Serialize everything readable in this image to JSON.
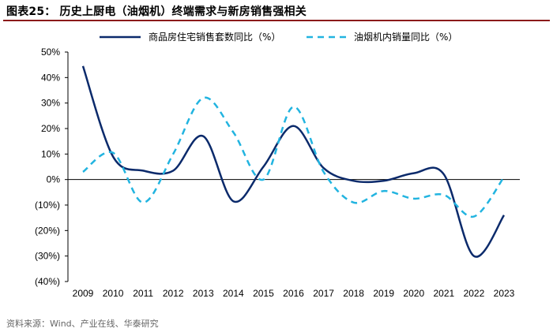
{
  "header": {
    "title": "图表25： 历史上厨电（油烟机）终端需求与新房销售强相关"
  },
  "footer": {
    "source": "资料来源：Wind、产业在线、华泰研究"
  },
  "chart_data": {
    "type": "line",
    "title": "",
    "xlabel": "",
    "ylabel": "",
    "categories": [
      "2009",
      "2010",
      "2011",
      "2012",
      "2013",
      "2014",
      "2015",
      "2016",
      "2017",
      "2018",
      "2019",
      "2020",
      "2021",
      "2022",
      "2023"
    ],
    "ylim": [
      -40,
      50
    ],
    "yticks": [
      50,
      40,
      30,
      20,
      10,
      0,
      -10,
      -20,
      -30,
      -40
    ],
    "ytick_labels": [
      "50%",
      "40%",
      "30%",
      "20%",
      "10%",
      "0%",
      "(10%)",
      "(20%)",
      "(30%)",
      "(40%)"
    ],
    "legend_position": "top",
    "grid": false,
    "series": [
      {
        "name": "商品房住宅销售套数同比（%）",
        "style": "solid",
        "color": "#0b2a6b",
        "values": [
          44.5,
          9,
          3.5,
          3.5,
          17,
          -8.5,
          5,
          21,
          4.5,
          -0.5,
          -0.5,
          2.5,
          2,
          -30,
          -14
        ]
      },
      {
        "name": "油烟机内销量同比（%）",
        "style": "dashed",
        "color": "#22b4e0",
        "values": [
          3,
          10.5,
          -9,
          10,
          32,
          18.5,
          0,
          28.5,
          3,
          -9,
          -4.5,
          -7.5,
          -6,
          -14.5,
          1
        ]
      }
    ]
  }
}
